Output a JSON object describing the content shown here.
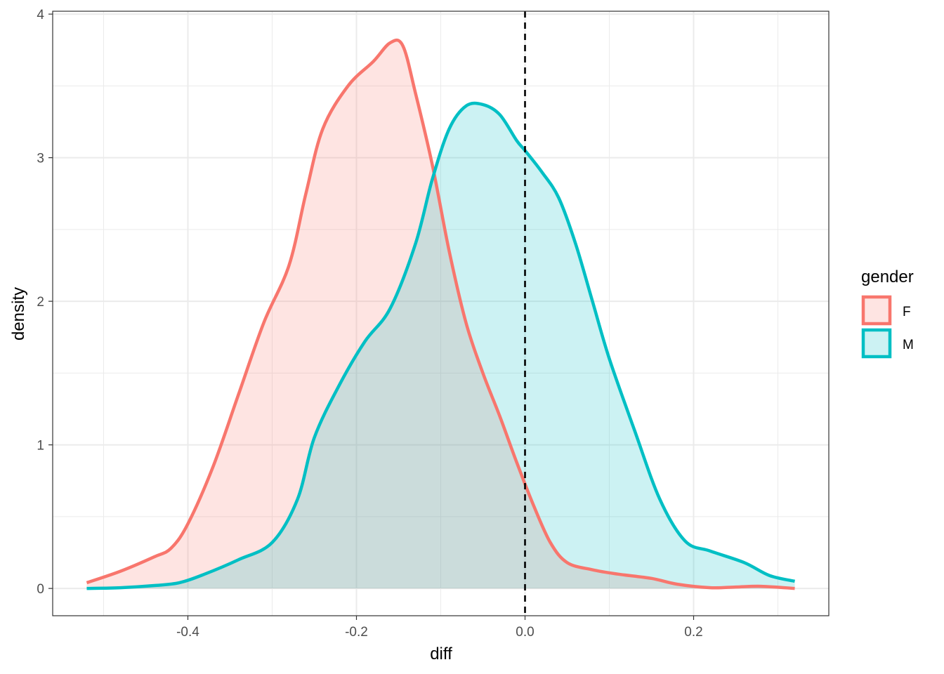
{
  "chart_data": {
    "type": "area",
    "subtype": "density",
    "xlabel": "diff",
    "ylabel": "density",
    "xlim": [
      -0.52,
      0.32
    ],
    "ylim": [
      0,
      4
    ],
    "x_ticks": [
      -0.4,
      -0.2,
      0.0,
      0.2
    ],
    "x_tick_labels": [
      "-0.4",
      "-0.2",
      "0.0",
      "0.2"
    ],
    "y_ticks": [
      0,
      1,
      2,
      3,
      4
    ],
    "y_tick_labels": [
      "0",
      "1",
      "2",
      "3",
      "4"
    ],
    "grid": true,
    "legend": {
      "title": "gender",
      "position": "right"
    },
    "reference_line": {
      "x": 0.0,
      "style": "dashed",
      "color": "#000000"
    },
    "series": [
      {
        "name": "F",
        "color": "#F8766D",
        "fill": "#F8766D",
        "fill_opacity": 0.2,
        "points": [
          [
            -0.52,
            0.04
          ],
          [
            -0.48,
            0.12
          ],
          [
            -0.44,
            0.22
          ],
          [
            -0.42,
            0.28
          ],
          [
            -0.4,
            0.45
          ],
          [
            -0.37,
            0.85
          ],
          [
            -0.34,
            1.35
          ],
          [
            -0.31,
            1.85
          ],
          [
            -0.28,
            2.25
          ],
          [
            -0.26,
            2.75
          ],
          [
            -0.24,
            3.2
          ],
          [
            -0.21,
            3.5
          ],
          [
            -0.18,
            3.67
          ],
          [
            -0.16,
            3.8
          ],
          [
            -0.145,
            3.78
          ],
          [
            -0.13,
            3.45
          ],
          [
            -0.11,
            2.95
          ],
          [
            -0.09,
            2.35
          ],
          [
            -0.07,
            1.85
          ],
          [
            -0.05,
            1.5
          ],
          [
            -0.03,
            1.2
          ],
          [
            -0.01,
            0.88
          ],
          [
            0.01,
            0.58
          ],
          [
            0.03,
            0.32
          ],
          [
            0.05,
            0.18
          ],
          [
            0.08,
            0.13
          ],
          [
            0.11,
            0.1
          ],
          [
            0.15,
            0.07
          ],
          [
            0.18,
            0.03
          ],
          [
            0.22,
            0.005
          ],
          [
            0.25,
            0.01
          ],
          [
            0.28,
            0.015
          ],
          [
            0.32,
            0.0
          ]
        ]
      },
      {
        "name": "M",
        "color": "#00BFC4",
        "fill": "#00BFC4",
        "fill_opacity": 0.2,
        "points": [
          [
            -0.52,
            0.0
          ],
          [
            -0.48,
            0.005
          ],
          [
            -0.44,
            0.02
          ],
          [
            -0.41,
            0.04
          ],
          [
            -0.38,
            0.1
          ],
          [
            -0.34,
            0.2
          ],
          [
            -0.3,
            0.32
          ],
          [
            -0.27,
            0.62
          ],
          [
            -0.25,
            1.05
          ],
          [
            -0.22,
            1.42
          ],
          [
            -0.19,
            1.72
          ],
          [
            -0.16,
            1.95
          ],
          [
            -0.13,
            2.4
          ],
          [
            -0.11,
            2.85
          ],
          [
            -0.09,
            3.2
          ],
          [
            -0.07,
            3.36
          ],
          [
            -0.05,
            3.37
          ],
          [
            -0.03,
            3.3
          ],
          [
            -0.01,
            3.12
          ],
          [
            0.0,
            3.05
          ],
          [
            0.02,
            2.9
          ],
          [
            0.04,
            2.72
          ],
          [
            0.06,
            2.4
          ],
          [
            0.08,
            2.0
          ],
          [
            0.1,
            1.6
          ],
          [
            0.13,
            1.1
          ],
          [
            0.16,
            0.62
          ],
          [
            0.19,
            0.33
          ],
          [
            0.22,
            0.26
          ],
          [
            0.26,
            0.18
          ],
          [
            0.29,
            0.09
          ],
          [
            0.32,
            0.05
          ]
        ]
      }
    ]
  }
}
